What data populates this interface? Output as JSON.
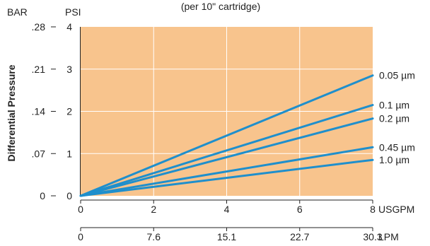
{
  "chart_data": {
    "type": "line",
    "title": "(per 10\" cartridge)",
    "ylabel": "Differential Pressure",
    "y_unit_left": "BAR",
    "y_unit_right": "PSI",
    "x_unit_primary": "USGPM",
    "x_unit_secondary": "LPM",
    "xlim": [
      0,
      8
    ],
    "ylim": [
      0,
      4
    ],
    "x_ticks": [
      "0",
      "2",
      "4",
      "6",
      "8"
    ],
    "x_ticks_lpm": [
      "0",
      "7.6",
      "15.1",
      "22.7",
      "30.3"
    ],
    "y_ticks_psi": [
      "0",
      "1",
      "2",
      "3",
      "4"
    ],
    "y_ticks_bar": [
      "0",
      ".07",
      ".14",
      ".21",
      ".28"
    ],
    "grid": true,
    "colors": {
      "background": "#f8c48d",
      "line": "#1f8fcc",
      "grid": "#ffffff",
      "axis": "#222222"
    },
    "series": [
      {
        "name": "0.05 µm",
        "x": [
          0,
          8
        ],
        "y": [
          0,
          2.85
        ]
      },
      {
        "name": "0.1 µm",
        "x": [
          0,
          8
        ],
        "y": [
          0,
          2.15
        ]
      },
      {
        "name": "0.2 µm",
        "x": [
          0,
          8
        ],
        "y": [
          0,
          1.83
        ]
      },
      {
        "name": "0.45 µm",
        "x": [
          0,
          8
        ],
        "y": [
          0,
          1.15
        ]
      },
      {
        "name": "1.0 µm",
        "x": [
          0,
          8
        ],
        "y": [
          0,
          0.85
        ]
      }
    ]
  }
}
